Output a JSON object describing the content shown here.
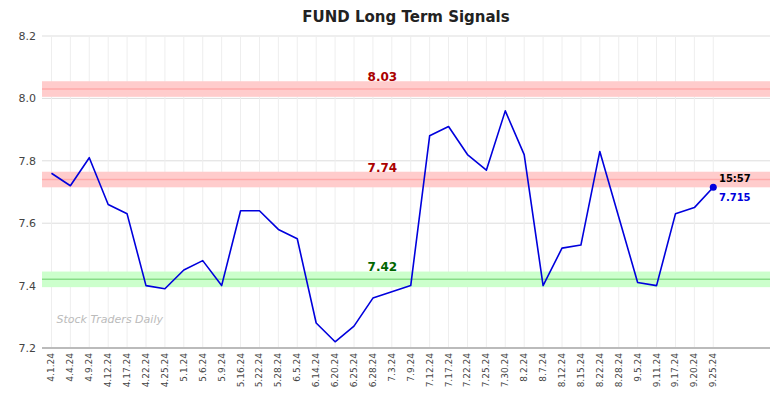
{
  "chart_data": {
    "type": "line",
    "title": "FUND Long Term Signals",
    "categories": [
      "4.1.24",
      "4.4.24",
      "4.9.24",
      "4.12.24",
      "4.17.24",
      "4.22.24",
      "4.25.24",
      "5.1.24",
      "5.6.24",
      "5.9.24",
      "5.16.24",
      "5.22.24",
      "5.28.24",
      "6.5.24",
      "6.14.24",
      "6.20.24",
      "6.25.24",
      "6.28.24",
      "7.3.24",
      "7.9.24",
      "7.12.24",
      "7.17.24",
      "7.22.24",
      "7.25.24",
      "7.30.24",
      "8.2.24",
      "8.7.24",
      "8.12.24",
      "8.15.24",
      "8.22.24",
      "8.28.24",
      "9.5.24",
      "9.11.24",
      "9.17.24",
      "9.20.24",
      "9.25.24"
    ],
    "values": [
      7.76,
      7.72,
      7.81,
      7.66,
      7.63,
      7.4,
      7.39,
      7.45,
      7.48,
      7.4,
      7.64,
      7.64,
      7.58,
      7.55,
      7.28,
      7.22,
      7.27,
      7.36,
      7.38,
      7.4,
      7.88,
      7.91,
      7.82,
      7.77,
      7.96,
      7.82,
      7.4,
      7.52,
      7.53,
      7.83,
      7.62,
      7.41,
      7.4,
      7.63,
      7.65,
      7.715
    ],
    "color": "#0000dd",
    "ylim": [
      7.2,
      8.2
    ],
    "yticks": [
      7.2,
      7.4,
      7.6,
      7.8,
      {
        "value": 8.0,
        "label": "8.0"
      },
      8.2
    ],
    "grid": true,
    "annotations": [
      {
        "text": "8.03",
        "value": 8.03,
        "color": "#aa0000",
        "line_color": "#ffaaaa",
        "band_color": "#ffcccc"
      },
      {
        "text": "7.74",
        "value": 7.74,
        "color": "#aa0000",
        "line_color": "#ffaaaa",
        "band_color": "#ffcccc"
      },
      {
        "text": "7.42",
        "value": 7.42,
        "color": "#006600",
        "line_color": "#88dd88",
        "band_color": "#ccffcc"
      }
    ],
    "last_point": {
      "time_label": "15:57",
      "value_label": "7.715"
    },
    "watermark": "Stock Traders Daily"
  }
}
